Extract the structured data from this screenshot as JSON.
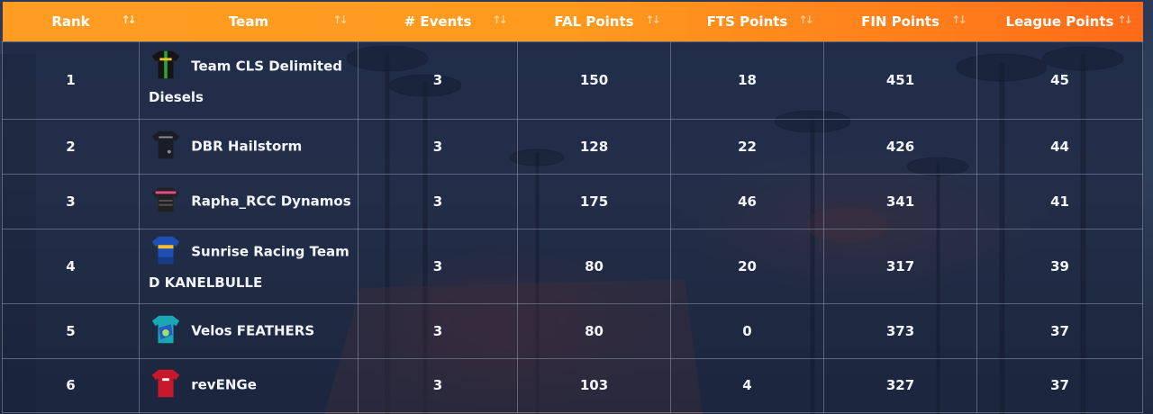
{
  "columns": [
    {
      "label": "Rank",
      "sort": "sort-icon"
    },
    {
      "label": "Team",
      "sort": "sort-icon"
    },
    {
      "label": "# Events",
      "sort": "sort-icon"
    },
    {
      "label": "FAL Points",
      "sort": "sort-icon"
    },
    {
      "label": "FTS Points",
      "sort": "sort-icon"
    },
    {
      "label": "FIN Points",
      "sort": "sort-icon"
    },
    {
      "label": "League Points",
      "sort": "sort-icon"
    }
  ],
  "colors": {
    "header_gradient_start": "#ff9d22",
    "header_gradient_end": "#ff6a18",
    "text": "#ffffff"
  },
  "rows": [
    {
      "rank": "1",
      "team": "Team CLS Delimited Diesels",
      "jersey": "black-green-jersey-icon",
      "events": "3",
      "fal": "150",
      "fts": "18",
      "fin": "451",
      "league": "45"
    },
    {
      "rank": "2",
      "team": "DBR Hailstorm",
      "jersey": "dark-jersey-icon",
      "events": "3",
      "fal": "128",
      "fts": "22",
      "fin": "426",
      "league": "44"
    },
    {
      "rank": "3",
      "team": "Rapha_RCC Dynamos",
      "jersey": "pink-stripe-jersey-icon",
      "events": "3",
      "fal": "175",
      "fts": "46",
      "fin": "341",
      "league": "41"
    },
    {
      "rank": "4",
      "team": "Sunrise Racing Team D KANELBULLE",
      "jersey": "blue-jersey-icon",
      "events": "3",
      "fal": "80",
      "fts": "20",
      "fin": "317",
      "league": "39"
    },
    {
      "rank": "5",
      "team": "Velos FEATHERS",
      "jersey": "teal-pattern-jersey-icon",
      "events": "3",
      "fal": "80",
      "fts": "0",
      "fin": "373",
      "league": "37"
    },
    {
      "rank": "6",
      "team": "revENGe",
      "jersey": "red-jersey-icon",
      "events": "3",
      "fal": "103",
      "fts": "4",
      "fin": "327",
      "league": "37"
    }
  ]
}
